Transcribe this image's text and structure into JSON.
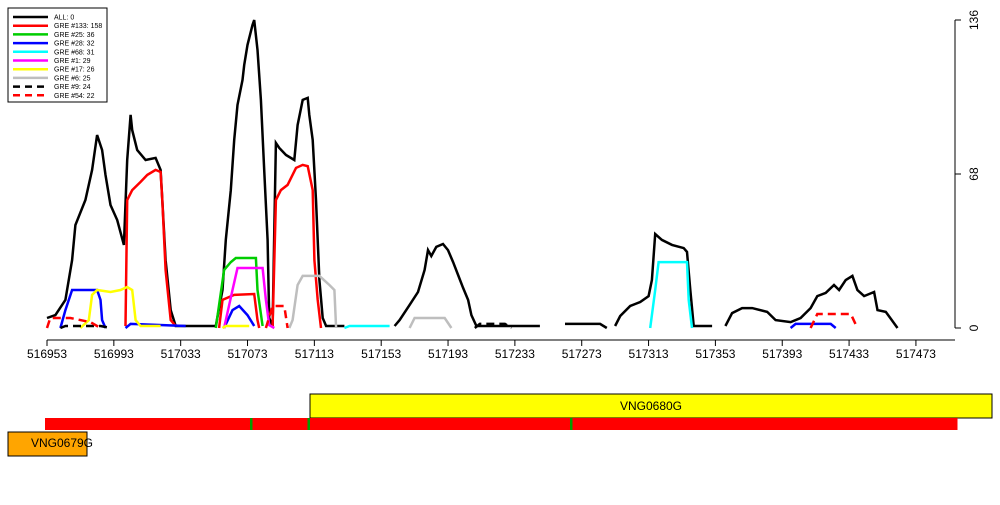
{
  "chart_data": {
    "type": "line",
    "xlim": [
      516953,
      517496
    ],
    "ylim": [
      0,
      136
    ],
    "xticks": [
      516953,
      516993,
      517033,
      517073,
      517113,
      517153,
      517193,
      517233,
      517273,
      517313,
      517353,
      517393,
      517433,
      517473
    ],
    "yticks": [
      0,
      68,
      136
    ],
    "legend": "top-left",
    "series": [
      {
        "name": "ALL: 0",
        "color": "#000000",
        "dash": false,
        "x": [
          516953,
          516958,
          516964,
          516968,
          516970,
          516976,
          516980,
          516983,
          516986,
          516988,
          516991,
          516995,
          516999,
          517001,
          517003,
          517004,
          517007,
          517012,
          517018,
          517021,
          517022,
          517024,
          517027,
          517030,
          517054,
          517058,
          517060,
          517063,
          517065,
          517067,
          517070,
          517071,
          517073,
          517076,
          517077,
          517079,
          517081,
          517083,
          517085,
          517086,
          517088,
          517089,
          517090,
          517092,
          517096,
          517101,
          517103,
          517106,
          517109,
          517110,
          517112,
          517114,
          517116,
          517118,
          517120,
          517131,
          null,
          517161,
          517164,
          517170,
          517175,
          517179,
          517181,
          517183,
          517186,
          517190,
          517193,
          517196,
          517199,
          517202,
          517205,
          517207,
          517210,
          517248,
          null,
          517263,
          517284,
          517288,
          null,
          517293,
          517296,
          517302,
          517308,
          517313,
          517315,
          517317,
          517321,
          517327,
          517334,
          517336,
          517338,
          517340,
          517351,
          null,
          517359,
          517363,
          517369,
          517375,
          517384,
          517389,
          517398,
          517404,
          517410,
          517414,
          517419,
          517424,
          517427,
          517431,
          517435,
          517438,
          517442,
          517448,
          517450,
          517455,
          517462
        ],
        "values": [
          4.4,
          5.7,
          12.4,
          30,
          45.5,
          56.5,
          69.8,
          85.2,
          78.6,
          67.6,
          54.3,
          47.7,
          36.7,
          74.2,
          94.1,
          87.4,
          78.6,
          74.2,
          75.1,
          69.8,
          56.5,
          30,
          7.9,
          0.9,
          0.9,
          16.8,
          38.9,
          60.9,
          83,
          98.5,
          109.5,
          116.1,
          125,
          133.8,
          136,
          122.8,
          100.7,
          69.8,
          38.9,
          4.4,
          0.9,
          43.3,
          81.7,
          79.5,
          76.4,
          74.2,
          89.6,
          100.7,
          101.6,
          94.1,
          83,
          56.5,
          21.2,
          4.4,
          0.9,
          0.9,
          null,
          0.9,
          3.5,
          10.2,
          15.9,
          25.6,
          34.4,
          31.8,
          35.8,
          37.1,
          34.4,
          29.1,
          23.4,
          17.7,
          12.4,
          5.7,
          0.9,
          0.9,
          null,
          1.8,
          1.8,
          0,
          null,
          0.9,
          5.3,
          9.7,
          11.5,
          14.1,
          21.2,
          41.5,
          38.9,
          36.7,
          35.3,
          33.6,
          16.8,
          0.9,
          0.9,
          null,
          0.9,
          6.6,
          8.8,
          8.8,
          7.1,
          3.5,
          2.6,
          4.4,
          8.8,
          14.1,
          15.5,
          19,
          16.8,
          21.2,
          23,
          16.8,
          14.1,
          15.9,
          7.9,
          7.1,
          0
        ]
      },
      {
        "name": "GRE #133: 158",
        "color": "#ff0000",
        "dash": false,
        "x": [
          517000,
          517001,
          517004,
          517009,
          517013,
          517018,
          517021,
          517022,
          517024,
          517027,
          517030,
          null,
          517056,
          517058,
          517065,
          517077,
          517079,
          517080,
          null,
          517088,
          517090,
          517093,
          517097,
          517102,
          517106,
          517109,
          517112,
          517113,
          517115,
          517117
        ],
        "values": [
          0.9,
          56.5,
          60.9,
          64.5,
          67.6,
          69.8,
          68.9,
          56.5,
          25.6,
          3.5,
          0.9,
          null,
          0,
          12.4,
          14.6,
          15,
          3.5,
          0,
          null,
          0.9,
          56.5,
          60.9,
          63.2,
          70.7,
          72,
          71.5,
          60.9,
          30,
          12.4,
          0
        ]
      },
      {
        "name": "GRE #25: 36",
        "color": "#00cd00",
        "dash": false,
        "x": [
          517054,
          517056,
          517059,
          517063,
          517066,
          517078,
          517079,
          517082
        ],
        "values": [
          0,
          10.2,
          25.6,
          29.1,
          30.9,
          30.9,
          16.8,
          0.9
        ]
      },
      {
        "name": "GRE #28: 32",
        "color": "#0000ff",
        "dash": false,
        "x": [
          516961,
          516964,
          516968,
          516983,
          516985,
          516986,
          516988,
          null,
          517000,
          517003,
          517036,
          null,
          517059,
          517064,
          517068,
          517073,
          517077,
          null,
          517398,
          517401,
          517422,
          517425
        ],
        "values": [
          0,
          7.9,
          16.8,
          16.8,
          12.4,
          3.5,
          0,
          null,
          0,
          1.8,
          0.9,
          null,
          0,
          7.9,
          9.7,
          5.7,
          0.9,
          null,
          0,
          1.8,
          1.8,
          0
        ]
      },
      {
        "name": "GRE #68: 31",
        "color": "#00ffff",
        "dash": false,
        "x": [
          517131,
          517134,
          517158,
          null,
          517314,
          517317,
          517319,
          517336,
          517337,
          517339
        ],
        "values": [
          0,
          0.9,
          0.9,
          null,
          0,
          16.8,
          29.1,
          29.1,
          12.4,
          0
        ]
      },
      {
        "name": "GRE #1: 29",
        "color": "#ff00ff",
        "dash": false,
        "x": [
          517059,
          517064,
          517067,
          517082,
          517084,
          517086,
          517089
        ],
        "values": [
          0,
          16.8,
          26.5,
          26.5,
          12.4,
          1.3,
          0
        ]
      },
      {
        "name": "GRE #17: 26",
        "color": "#ffff00",
        "dash": false,
        "x": [
          516973,
          516978,
          516980,
          516983,
          516991,
          516997,
          517001,
          517004,
          517006,
          517009,
          517021,
          null,
          517058,
          517060,
          517074
        ],
        "values": [
          0,
          3.5,
          14.6,
          16.8,
          15.9,
          16.8,
          18.1,
          16.8,
          3.5,
          0.9,
          0.9,
          null,
          0,
          0.9,
          0.9
        ]
      },
      {
        "name": "GRE #6: 25",
        "color": "#bebebe",
        "dash": false,
        "x": [
          517098,
          517100,
          517103,
          517106,
          517116,
          517122,
          517125,
          517126,
          null,
          517170,
          517173,
          517191,
          517195
        ],
        "values": [
          0,
          3.5,
          19,
          23,
          23,
          19,
          16.8,
          0,
          null,
          0,
          4.4,
          4.4,
          0
        ]
      },
      {
        "name": "GRE #9: 24",
        "color": "#000000",
        "dash": true,
        "x": [
          516961,
          516964,
          516985,
          516991,
          null,
          517209,
          517212,
          517227,
          517231
        ],
        "values": [
          0,
          0.9,
          0.9,
          0,
          null,
          0,
          1.8,
          1.8,
          0
        ]
      },
      {
        "name": "GRE #54: 22",
        "color": "#ff0000",
        "dash": true,
        "x": [
          516953,
          516955,
          516967,
          516979,
          516985,
          null,
          517084,
          517088,
          517095,
          517097,
          null,
          517410,
          517414,
          517434,
          517438
        ],
        "values": [
          0,
          4.4,
          4.4,
          2.6,
          0,
          null,
          0,
          9.7,
          9.7,
          0,
          null,
          0,
          6.2,
          6.2,
          0
        ]
      }
    ]
  },
  "genes": [
    {
      "name": "VNG0680G",
      "color": "#ffff00"
    },
    {
      "name": "VNG0679G",
      "color": "#ffa500"
    }
  ]
}
